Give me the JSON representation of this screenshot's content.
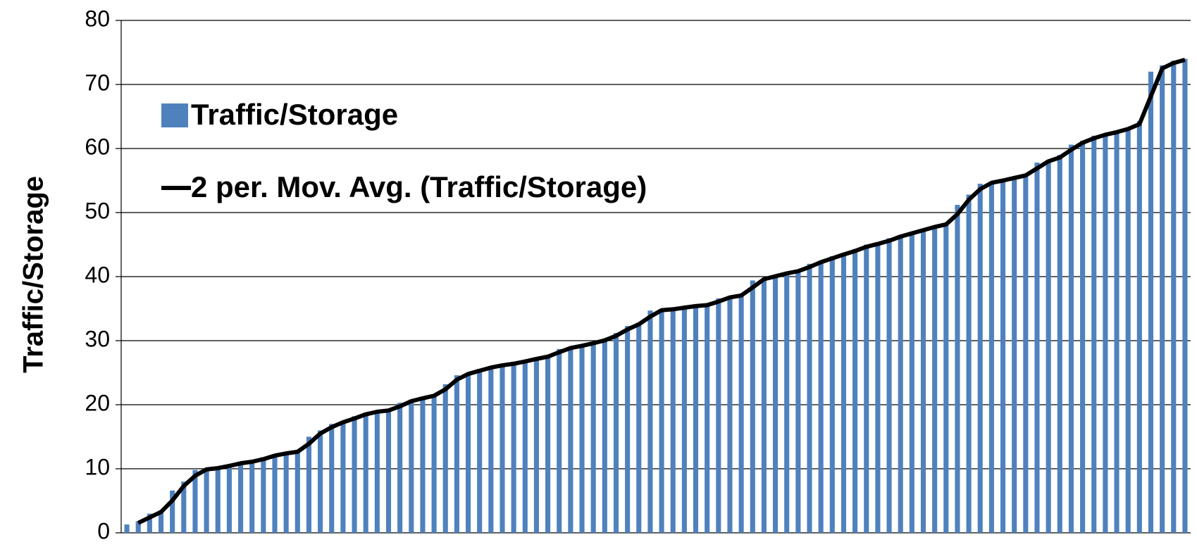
{
  "chart_data": {
    "type": "bar",
    "y_label": "Traffic/Storage",
    "ylim": [
      0,
      80
    ],
    "yticks": [
      0,
      10,
      20,
      30,
      40,
      50,
      60,
      70,
      80
    ],
    "grid": true,
    "legend": "upper left",
    "series": [
      {
        "name": "Traffic/Storage",
        "type": "bar",
        "color": "#4f81bd",
        "values": [
          1.3,
          1.8,
          3.0,
          3.5,
          6.6,
          8.0,
          9.8,
          10.0,
          10.2,
          10.7,
          11.0,
          11.2,
          11.8,
          12.3,
          12.5,
          12.8,
          15.0,
          16.0,
          17.0,
          17.5,
          18.2,
          18.8,
          19.0,
          19.2,
          20.3,
          20.8,
          21.2,
          21.6,
          23.2,
          24.6,
          25.0,
          25.6,
          26.0,
          26.3,
          26.5,
          27.0,
          27.3,
          27.7,
          28.7,
          29.0,
          29.4,
          29.8,
          30.3,
          31.2,
          32.3,
          32.8,
          34.7,
          34.8,
          35.0,
          35.3,
          35.5,
          35.6,
          36.6,
          36.9,
          37.2,
          39.4,
          39.8,
          40.3,
          40.7,
          41.0,
          42.0,
          42.5,
          43.2,
          43.7,
          44.3,
          45.0,
          45.2,
          46.0,
          46.5,
          47.0,
          47.5,
          48.0,
          48.3,
          51.2,
          52.8,
          54.5,
          54.8,
          55.2,
          55.6,
          56.0,
          57.8,
          58.2,
          59.0,
          60.6,
          61.2,
          62.0,
          62.3,
          62.8,
          63.3,
          64.3,
          72.0,
          73.0,
          73.7,
          74.0
        ]
      },
      {
        "name": "2 per. Mov. Avg. (Traffic/Storage)",
        "type": "line",
        "color": "#000000",
        "values": [
          null,
          1.55,
          2.4,
          3.25,
          5.05,
          7.3,
          8.9,
          9.9,
          10.1,
          10.45,
          10.85,
          11.1,
          11.5,
          12.05,
          12.4,
          12.65,
          13.9,
          15.5,
          16.5,
          17.25,
          17.85,
          18.5,
          18.9,
          19.1,
          19.75,
          20.55,
          21.0,
          21.4,
          22.4,
          23.9,
          24.8,
          25.3,
          25.8,
          26.15,
          26.4,
          26.75,
          27.15,
          27.5,
          28.2,
          28.85,
          29.2,
          29.6,
          30.05,
          30.75,
          31.75,
          32.55,
          33.75,
          34.75,
          34.9,
          35.15,
          35.4,
          35.55,
          36.1,
          36.75,
          37.05,
          38.3,
          39.6,
          40.05,
          40.5,
          40.85,
          41.5,
          42.25,
          42.85,
          43.45,
          44.0,
          44.65,
          45.1,
          45.6,
          46.25,
          46.75,
          47.25,
          47.75,
          48.15,
          49.75,
          52.0,
          53.65,
          54.65,
          55.0,
          55.4,
          55.8,
          56.9,
          58.0,
          58.6,
          59.8,
          60.9,
          61.6,
          62.15,
          62.55,
          63.05,
          63.8,
          68.15,
          72.5,
          73.35,
          73.85
        ]
      }
    ]
  }
}
